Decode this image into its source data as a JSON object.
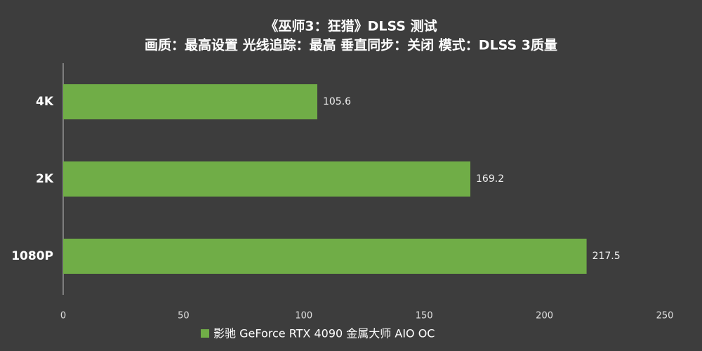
{
  "chart_data": {
    "type": "bar",
    "orientation": "horizontal",
    "title": "《巫师3：狂猎》DLSS 测试",
    "subtitle": "画质：最高设置 光线追踪：最高  垂直同步：关闭 模式：DLSS 3质量",
    "categories": [
      "4K",
      "2K",
      "1080P"
    ],
    "series": [
      {
        "name": "影驰 GeForce RTX 4090 金属大师 AIO OC",
        "color": "#70ad47",
        "values": [
          105.6,
          169.2,
          217.5
        ]
      }
    ],
    "xlim": [
      0,
      250
    ],
    "xticks": [
      0,
      50,
      100,
      150,
      200,
      250
    ],
    "grid": false
  }
}
